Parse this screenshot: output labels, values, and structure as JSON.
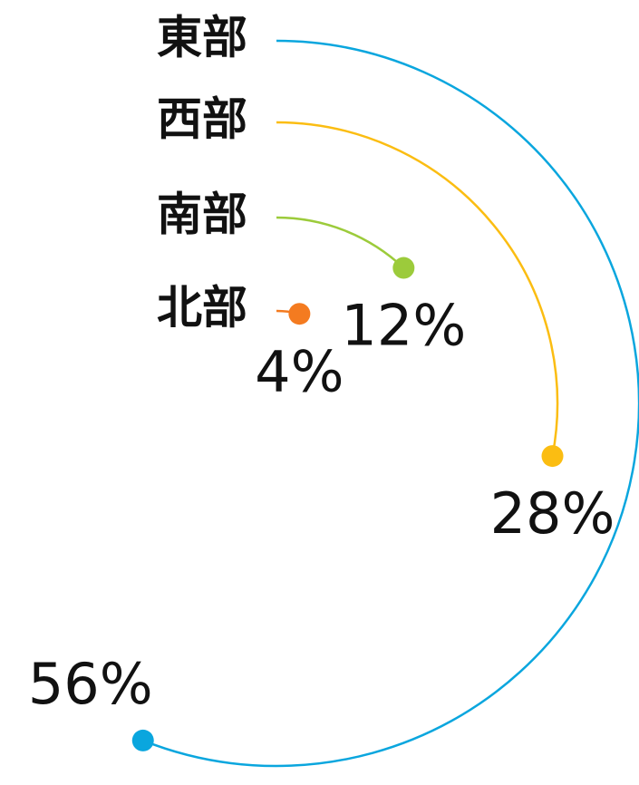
{
  "chart_data": {
    "type": "radial-bar",
    "categories": [
      "東部",
      "西部",
      "南部",
      "北部"
    ],
    "values": [
      56,
      28,
      12,
      4
    ],
    "value_labels": [
      "56%",
      "28%",
      "12%",
      "4%"
    ],
    "colors": [
      "#0aa6de",
      "#fbbd12",
      "#9ccb3b",
      "#f47b20"
    ],
    "ylim": [
      0,
      100
    ]
  }
}
